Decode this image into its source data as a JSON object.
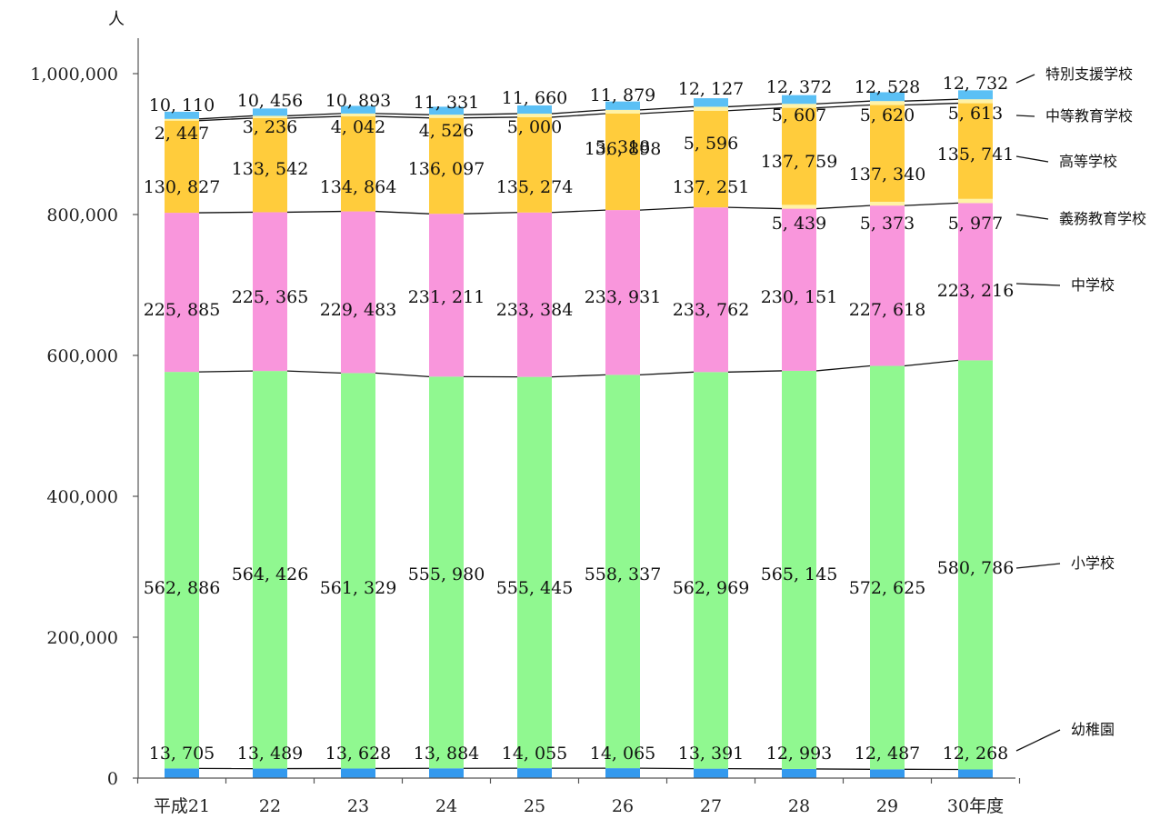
{
  "chart_data": {
    "type": "bar",
    "stacked": true,
    "unit_label": "人",
    "categories": [
      "平成21",
      "22",
      "23",
      "24",
      "25",
      "26",
      "27",
      "28",
      "29",
      "30年度"
    ],
    "ylim": [
      0,
      1000000
    ],
    "yticks": [
      "0",
      "200,000",
      "400,000",
      "600,000",
      "800,000",
      "1,000,000"
    ],
    "ytick_values": [
      0,
      200000,
      400000,
      600000,
      800000,
      1000000
    ],
    "series": [
      {
        "name": "幼稚園",
        "color": "#3399ee",
        "values": [
          13705,
          13489,
          13628,
          13884,
          14055,
          14065,
          13391,
          12993,
          12487,
          12268
        ],
        "labels": [
          "13, 705",
          "13, 489",
          "13, 628",
          "13, 884",
          "14, 055",
          "14, 065",
          "13, 391",
          "12, 993",
          "12, 487",
          "12, 268"
        ]
      },
      {
        "name": "小学校",
        "color": "#90f890",
        "values": [
          562886,
          564426,
          561329,
          555980,
          555445,
          558337,
          562969,
          565145,
          572625,
          580786
        ],
        "labels": [
          "562, 886",
          "564, 426",
          "561, 329",
          "555, 980",
          "555, 445",
          "558, 337",
          "562, 969",
          "565, 145",
          "572, 625",
          "580, 786"
        ]
      },
      {
        "name": "中学校",
        "color": "#f996dc",
        "values": [
          225885,
          225365,
          229483,
          231211,
          233384,
          233931,
          233762,
          230151,
          227618,
          223216
        ],
        "labels": [
          "225, 885",
          "225, 365",
          "229, 483",
          "231, 211",
          "233, 384",
          "233, 931",
          "233, 762",
          "230, 151",
          "227, 618",
          "223, 216"
        ]
      },
      {
        "name": "義務教育学校",
        "color": "#fff2a6",
        "values": [
          0,
          0,
          0,
          0,
          0,
          0,
          0,
          5439,
          5373,
          5977
        ],
        "labels": [
          "",
          "",
          "",
          "",
          "",
          "",
          "",
          "5, 439",
          "5, 373",
          "5, 977"
        ]
      },
      {
        "name": "高等学校",
        "color": "#ffcc3c",
        "values": [
          130827,
          133542,
          134864,
          136097,
          135274,
          136898,
          137251,
          137759,
          137340,
          135741
        ],
        "labels": [
          "130, 827",
          "133, 542",
          "134, 864",
          "136, 097",
          "135, 274",
          "136, 898",
          "137, 251",
          "137, 759",
          "137, 340",
          "135, 741"
        ]
      },
      {
        "name": "中等教育学校",
        "color": "#fff2a6",
        "values": [
          2447,
          3236,
          4042,
          4526,
          5000,
          5318,
          5596,
          5607,
          5620,
          5613
        ],
        "labels": [
          "2, 447",
          "3, 236",
          "4, 042",
          "4, 526",
          "5, 000",
          "5, 318",
          "5, 596",
          "5, 607",
          "5, 620",
          "5, 613"
        ]
      },
      {
        "name": "特別支援学校",
        "color": "#5bc0f5",
        "values": [
          10110,
          10456,
          10893,
          11331,
          11660,
          11879,
          12127,
          12372,
          12528,
          12732
        ],
        "labels": [
          "10, 110",
          "10, 456",
          "10, 893",
          "11, 331",
          "11, 660",
          "11, 879",
          "12, 127",
          "12, 372",
          "12, 528",
          "12, 732"
        ]
      }
    ],
    "legend_placement": "right",
    "grid": false
  }
}
